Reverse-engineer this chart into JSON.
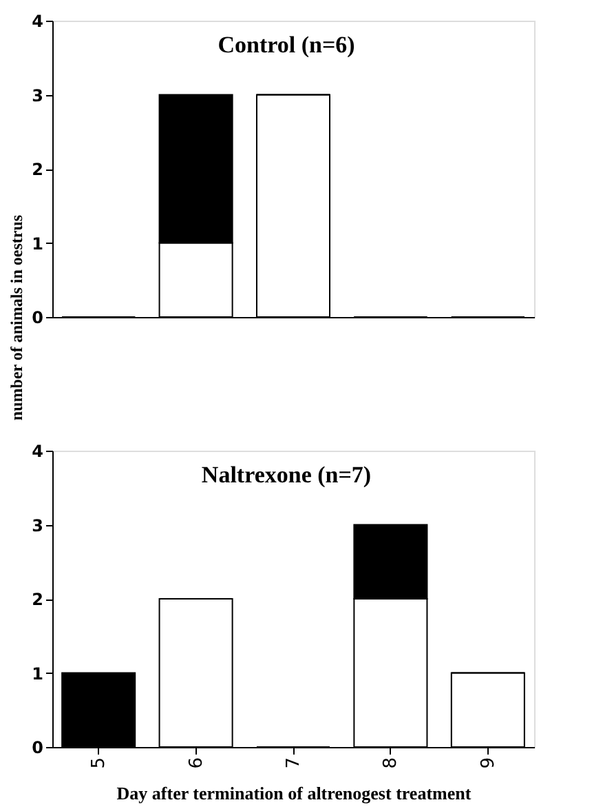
{
  "chart_data": [
    {
      "type": "bar",
      "title": "Control (n=6)",
      "ylabel": "number of animals in oestrus",
      "categories": [
        "5",
        "6",
        "7",
        "8",
        "9"
      ],
      "stacked": true,
      "ylim": [
        0,
        4
      ],
      "yticks": [
        0,
        1,
        2,
        3,
        4
      ],
      "grid": false,
      "legend": false,
      "tick_labels": "y",
      "series": [
        {
          "color": "#ffffff",
          "values": [
            0,
            1,
            3,
            0,
            0
          ]
        },
        {
          "color": "#000000",
          "values": [
            0,
            2,
            0,
            0,
            0
          ]
        }
      ]
    },
    {
      "type": "bar",
      "title": "Naltrexone (n=7)",
      "xlabel": "Day after termination of altrenogest treatment",
      "categories": [
        "5",
        "6",
        "7",
        "8",
        "9"
      ],
      "stacked": true,
      "ylim": [
        0,
        4
      ],
      "yticks": [
        0,
        1,
        2,
        3,
        4
      ],
      "grid": false,
      "legend": false,
      "series": [
        {
          "color": "#ffffff",
          "values": [
            0,
            2,
            0,
            2,
            1
          ]
        },
        {
          "color": "#000000",
          "values": [
            1,
            0,
            0,
            1,
            0
          ]
        }
      ]
    }
  ]
}
